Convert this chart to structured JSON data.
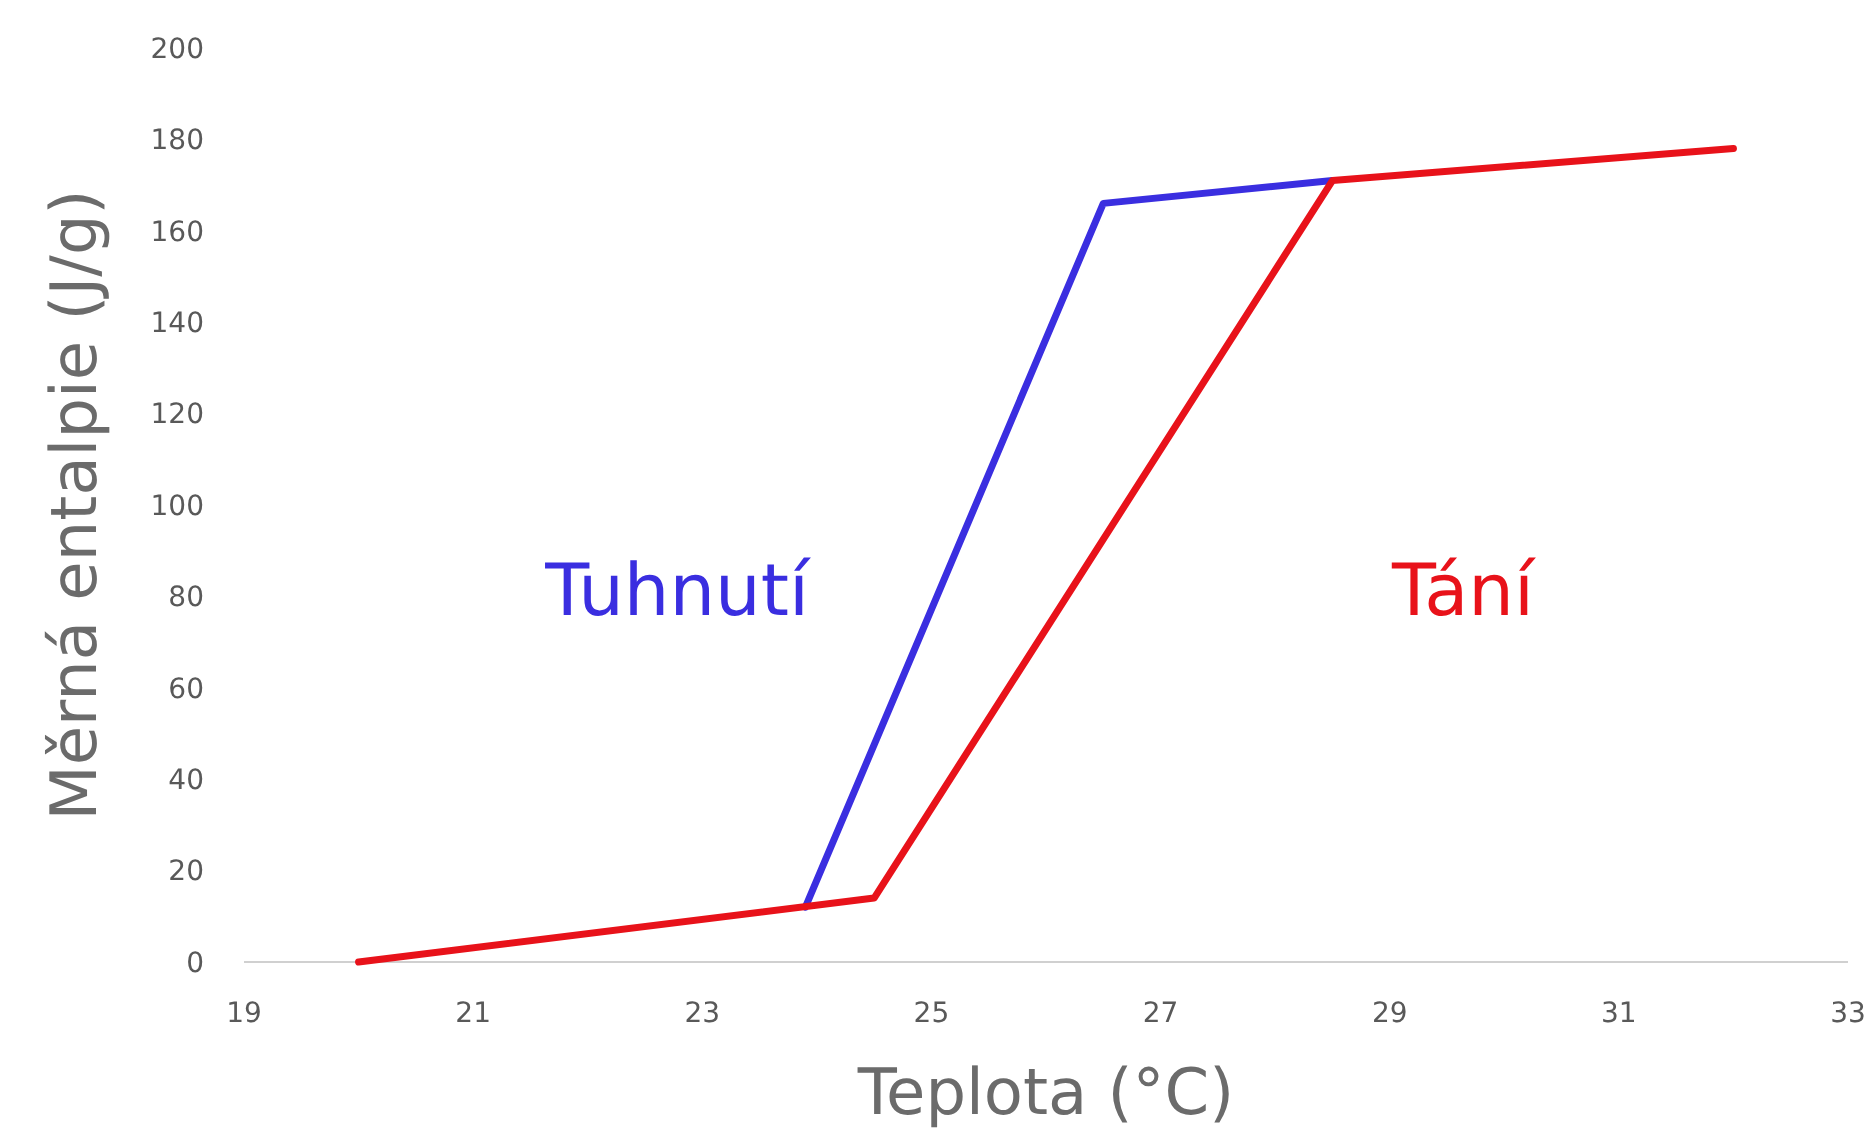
{
  "chart_data": {
    "type": "line",
    "xlabel": "Teplota (°C)",
    "ylabel": "Měrná entalpie (J/g)",
    "xlim": [
      19,
      33
    ],
    "xticks": [
      19,
      21,
      23,
      25,
      27,
      29,
      31,
      33
    ],
    "ylim": [
      0,
      200
    ],
    "yticks": [
      0,
      20,
      40,
      60,
      80,
      100,
      120,
      140,
      160,
      180,
      200
    ],
    "grid": false,
    "legend": false,
    "marker": "none",
    "line_style": "solid",
    "series": [
      {
        "name": "Tuhnutí",
        "color": "#3a2ee0",
        "x": [
          23.9,
          26.5,
          28.5
        ],
        "values": [
          12,
          166,
          171
        ]
      },
      {
        "name": "Tání",
        "color": "#e8121a",
        "x": [
          20,
          24.5,
          28.5,
          32
        ],
        "values": [
          0,
          14,
          171,
          178
        ]
      }
    ]
  }
}
